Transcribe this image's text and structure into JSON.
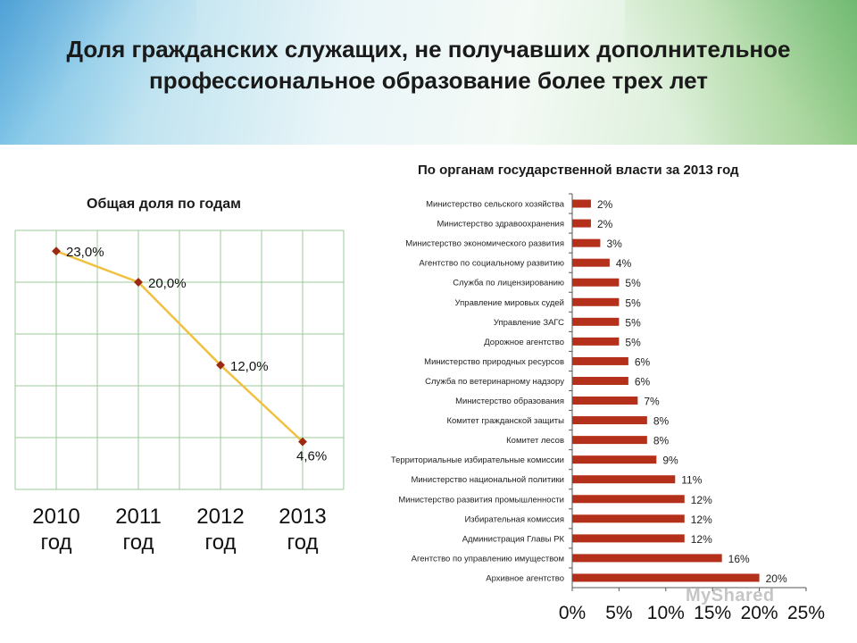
{
  "slide": {
    "title": "Доля гражданских служащих, не получавших дополнительное профессиональное образование более трех лет"
  },
  "watermark": "MyShared",
  "chart_data": [
    {
      "type": "line",
      "title": "Общая доля по годам",
      "categories": [
        "2010 год",
        "2011 год",
        "2012 год",
        "2013 год"
      ],
      "series": [
        {
          "values": [
            23.0,
            20.0,
            12.0,
            4.6
          ],
          "labels": [
            "23,0%",
            "20,0%",
            "12,0%",
            "4,6%"
          ],
          "color": "#f0c040",
          "marker_color": "#9b2a0e"
        }
      ],
      "ylim": [
        0,
        25
      ],
      "grid": true
    },
    {
      "type": "bar",
      "orientation": "horizontal",
      "title": "По органам государственной власти за 2013 год",
      "categories": [
        "Министерство сельского хозяйства",
        "Министерство здравоохранения",
        "Министерство экономического развития",
        "Агентство по социальному развитию",
        "Служба по лицензированию",
        "Управление мировых судей",
        "Управление ЗАГС",
        "Дорожное агентство",
        "Министерство природных ресурсов",
        "Служба по ветеринарному надзору",
        "Министерство образования",
        "Комитет гражданской защиты",
        "Комитет лесов",
        "Территориальные избирательные комиссии",
        "Министерство национальной политики",
        "Министерство развития промышленности",
        "Избирательная комиссия",
        "Администрация Главы РК",
        "Агентство по управлению имуществом",
        "Архивное агентство"
      ],
      "values": [
        2,
        2,
        3,
        4,
        5,
        5,
        5,
        5,
        6,
        6,
        7,
        8,
        8,
        9,
        11,
        12,
        12,
        12,
        16,
        20
      ],
      "labels": [
        "2%",
        "2%",
        "3%",
        "4%",
        "5%",
        "5%",
        "5%",
        "5%",
        "6%",
        "6%",
        "7%",
        "8%",
        "8%",
        "9%",
        "11%",
        "12%",
        "12%",
        "12%",
        "16%",
        "20%"
      ],
      "xticks": [
        "0%",
        "5%",
        "10%",
        "15%",
        "20%",
        "25%"
      ],
      "xlim": [
        0,
        25
      ],
      "color": "#b5301a",
      "grid": false
    }
  ]
}
